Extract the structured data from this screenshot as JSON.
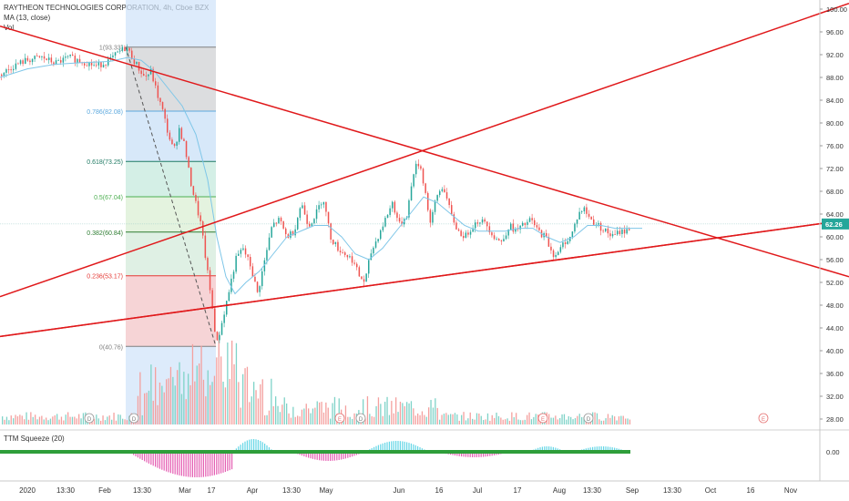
{
  "header": {
    "title": "RAYTHEON TECHNOLOGIES CORPORATION, 4h, Cboe BZX",
    "ma_label": "MA (13, close)",
    "vol_label": "Vol"
  },
  "indicator": {
    "label": "TTM Squeeze (20)",
    "value_label": "0.00"
  },
  "colors": {
    "up": "#26a69a",
    "down": "#ef5350",
    "trendline": "#e0191b",
    "ma": "#7ec6e8",
    "price_badge": "#26a69a"
  },
  "chart_data": {
    "type": "candlestick",
    "title": "RAYTHEON TECHNOLOGIES CORPORATION, 4h, Cboe BZX",
    "y_axis": {
      "ticks": [
        "100.00",
        "96.00",
        "92.00",
        "88.00",
        "84.00",
        "80.00",
        "76.00",
        "72.00",
        "68.00",
        "64.00",
        "60.00",
        "56.00",
        "52.00",
        "48.00",
        "44.00",
        "40.00",
        "36.00",
        "32.00",
        "28.00"
      ],
      "range": [
        27,
        101
      ]
    },
    "x_axis": {
      "ticks": [
        "2020",
        "13:30",
        "Feb",
        "13:30",
        "Mar",
        "17",
        "Apr",
        "13:30",
        "May",
        "Jun",
        "16",
        "Jul",
        "17",
        "Aug",
        "13:30",
        "Sep",
        "13:30",
        "Oct",
        "16",
        "Nov"
      ]
    },
    "last_price": "62.26",
    "price_path": [
      [
        0,
        88.5
      ],
      [
        14,
        90
      ],
      [
        28,
        91
      ],
      [
        45,
        91.5
      ],
      [
        60,
        90.5
      ],
      [
        75,
        91.5
      ],
      [
        90,
        90.8
      ],
      [
        105,
        90
      ],
      [
        120,
        91
      ],
      [
        130,
        92.5
      ],
      [
        138,
        93.3
      ],
      [
        148,
        90.5
      ],
      [
        158,
        88
      ],
      [
        165,
        89
      ],
      [
        172,
        85
      ],
      [
        178,
        82
      ],
      [
        184,
        78
      ],
      [
        190,
        75
      ],
      [
        196,
        79
      ],
      [
        202,
        76
      ],
      [
        208,
        70
      ],
      [
        214,
        66
      ],
      [
        220,
        62
      ],
      [
        226,
        55
      ],
      [
        232,
        48
      ],
      [
        237,
        41
      ],
      [
        243,
        45
      ],
      [
        250,
        50
      ],
      [
        258,
        56
      ],
      [
        266,
        58
      ],
      [
        274,
        55
      ],
      [
        282,
        50
      ],
      [
        290,
        56
      ],
      [
        298,
        62
      ],
      [
        306,
        63
      ],
      [
        314,
        60
      ],
      [
        322,
        61
      ],
      [
        330,
        66
      ],
      [
        338,
        62
      ],
      [
        346,
        64
      ],
      [
        354,
        67
      ],
      [
        362,
        60
      ],
      [
        370,
        58
      ],
      [
        378,
        57
      ],
      [
        386,
        56
      ],
      [
        394,
        53
      ],
      [
        400,
        52
      ],
      [
        406,
        57
      ],
      [
        414,
        60
      ],
      [
        422,
        63
      ],
      [
        430,
        66
      ],
      [
        438,
        62
      ],
      [
        446,
        64
      ],
      [
        454,
        72
      ],
      [
        460,
        73
      ],
      [
        466,
        68
      ],
      [
        472,
        62
      ],
      [
        478,
        67
      ],
      [
        486,
        69
      ],
      [
        494,
        64
      ],
      [
        502,
        61
      ],
      [
        510,
        60
      ],
      [
        518,
        62
      ],
      [
        526,
        63
      ],
      [
        534,
        62
      ],
      [
        542,
        60
      ],
      [
        550,
        59
      ],
      [
        558,
        62
      ],
      [
        566,
        61
      ],
      [
        574,
        62
      ],
      [
        582,
        63
      ],
      [
        590,
        61
      ],
      [
        598,
        60
      ],
      [
        606,
        57
      ],
      [
        612,
        57
      ],
      [
        618,
        59
      ],
      [
        626,
        60
      ],
      [
        634,
        64
      ],
      [
        640,
        65
      ],
      [
        648,
        63
      ],
      [
        656,
        62
      ],
      [
        664,
        61
      ],
      [
        672,
        60
      ],
      [
        680,
        61
      ],
      [
        688,
        61
      ],
      [
        692,
        62.3
      ]
    ],
    "ma_path": [
      [
        0,
        88
      ],
      [
        30,
        89.5
      ],
      [
        60,
        90.3
      ],
      [
        90,
        90.6
      ],
      [
        120,
        90.8
      ],
      [
        140,
        91.5
      ],
      [
        155,
        91
      ],
      [
        170,
        89
      ],
      [
        185,
        86
      ],
      [
        200,
        83
      ],
      [
        215,
        78
      ],
      [
        228,
        70
      ],
      [
        238,
        60
      ],
      [
        248,
        53
      ],
      [
        258,
        50
      ],
      [
        270,
        52
      ],
      [
        285,
        54
      ],
      [
        300,
        57
      ],
      [
        315,
        60
      ],
      [
        330,
        61
      ],
      [
        345,
        62
      ],
      [
        360,
        62
      ],
      [
        375,
        60
      ],
      [
        390,
        57
      ],
      [
        405,
        56
      ],
      [
        420,
        58
      ],
      [
        435,
        61
      ],
      [
        450,
        64
      ],
      [
        465,
        67
      ],
      [
        480,
        66
      ],
      [
        495,
        64
      ],
      [
        510,
        62
      ],
      [
        525,
        61
      ],
      [
        540,
        61
      ],
      [
        555,
        61
      ],
      [
        570,
        61.5
      ],
      [
        585,
        61.5
      ],
      [
        600,
        60
      ],
      [
        615,
        59
      ],
      [
        630,
        60
      ],
      [
        645,
        62
      ],
      [
        660,
        62
      ],
      [
        675,
        61.5
      ],
      [
        690,
        61.5
      ],
      [
        705,
        61.5
      ]
    ],
    "fibonacci": [
      {
        "label": "1(93.33)",
        "value": 93.33,
        "color": "#808080"
      },
      {
        "label": "0.786(82.08)",
        "value": 82.08,
        "color": "#5ba8de"
      },
      {
        "label": "0.618(73.25)",
        "value": 73.25,
        "color": "#1f7a63"
      },
      {
        "label": "0.5(67.04)",
        "value": 67.04,
        "color": "#4caf50"
      },
      {
        "label": "0.382(60.84)",
        "value": 60.84,
        "color": "#2e7d32"
      },
      {
        "label": "0.236(53.17)",
        "value": 53.17,
        "color": "#e53935"
      },
      {
        "label": "0(40.76)",
        "value": 40.76,
        "color": "#808080"
      }
    ],
    "trendlines": [
      {
        "from": [
          0,
          97
        ],
        "to": [
          932,
          53
        ]
      },
      {
        "from": [
          0,
          49.5
        ],
        "to": [
          932,
          101
        ]
      },
      {
        "from": [
          0,
          42.5
        ],
        "to": [
          932,
          63
        ]
      },
      {
        "from": [
          0,
          42.5
        ],
        "to": [
          932,
          63
        ]
      }
    ],
    "grid": false
  }
}
